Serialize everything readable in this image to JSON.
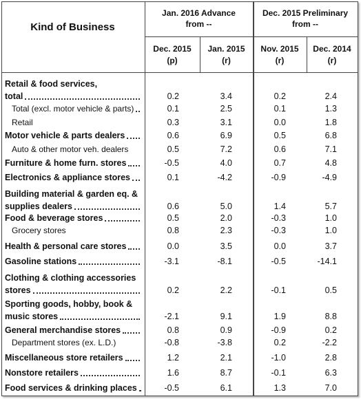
{
  "header": {
    "kind": "Kind of Business",
    "groups": [
      [
        "Jan. 2016 Advance",
        "from --"
      ],
      [
        "Dec. 2015 Preliminary",
        "from --"
      ]
    ],
    "columns": [
      [
        "Dec. 2015",
        "(p)"
      ],
      [
        "Jan. 2015",
        "(r)"
      ],
      [
        "Nov. 2015",
        "(r)"
      ],
      [
        "Dec. 2014",
        "(r)"
      ]
    ]
  },
  "table": {
    "rows": [
      {
        "label": [
          "Retail & food services,",
          "total"
        ],
        "values": [
          "0.2",
          "3.4",
          "0.2",
          "2.4"
        ]
      },
      {
        "label": [
          "Total (excl. motor vehicle & parts)"
        ],
        "values": [
          "0.1",
          "2.5",
          "0.1",
          "1.3"
        ]
      },
      {
        "label": [
          "Retail"
        ],
        "values": [
          "0.3",
          "3.1",
          "0.0",
          "1.8"
        ]
      },
      {
        "label": [
          "Motor vehicle & parts dealers"
        ],
        "values": [
          "0.6",
          "6.9",
          "0.5",
          "6.8"
        ]
      },
      {
        "label": [
          "Auto & other motor veh. dealers"
        ],
        "values": [
          "0.5",
          "7.2",
          "0.6",
          "7.1"
        ]
      },
      {
        "label": [
          "Furniture & home furn. stores"
        ],
        "values": [
          "-0.5",
          "4.0",
          "0.7",
          "4.8"
        ]
      },
      {
        "label": [
          "Electronics & appliance stores"
        ],
        "values": [
          "0.1",
          "-4.2",
          "-0.9",
          "-4.9"
        ]
      },
      {
        "label": [
          "Building material & garden eq. &",
          "supplies dealers"
        ],
        "values": [
          "0.6",
          "5.0",
          "1.4",
          "5.7"
        ]
      },
      {
        "label": [
          "Food & beverage stores"
        ],
        "values": [
          "0.5",
          "2.0",
          "-0.3",
          "1.0"
        ]
      },
      {
        "label": [
          "Grocery stores"
        ],
        "values": [
          "0.8",
          "2.3",
          "-0.3",
          "1.0"
        ]
      },
      {
        "label": [
          "Health & personal care stores"
        ],
        "values": [
          "0.0",
          "3.5",
          "0.0",
          "3.7"
        ]
      },
      {
        "label": [
          "Gasoline stations"
        ],
        "values": [
          "-3.1",
          "-8.1",
          "-0.5",
          "-14.1"
        ]
      },
      {
        "label": [
          "Clothing & clothing accessories",
          "stores"
        ],
        "values": [
          "0.2",
          "2.2",
          "-0.1",
          "0.5"
        ]
      },
      {
        "label": [
          "Sporting goods, hobby, book &",
          "music stores"
        ],
        "values": [
          "-2.1",
          "9.1",
          "1.9",
          "8.8"
        ]
      },
      {
        "label": [
          "General merchandise stores"
        ],
        "values": [
          "0.8",
          "0.9",
          "-0.9",
          "0.2"
        ]
      },
      {
        "label": [
          "Department stores (ex. L.D.)"
        ],
        "values": [
          "-0.8",
          "-3.8",
          "0.2",
          "-2.2"
        ]
      },
      {
        "label": [
          "Miscellaneous store retailers"
        ],
        "values": [
          "1.2",
          "2.1",
          "-1.0",
          "2.8"
        ]
      },
      {
        "label": [
          "Nonstore retailers"
        ],
        "values": [
          "1.6",
          "8.7",
          "-0.1",
          "6.3"
        ]
      },
      {
        "label": [
          "Food services & drinking places"
        ],
        "values": [
          "-0.5",
          "6.1",
          "1.3",
          "7.0"
        ]
      }
    ]
  }
}
